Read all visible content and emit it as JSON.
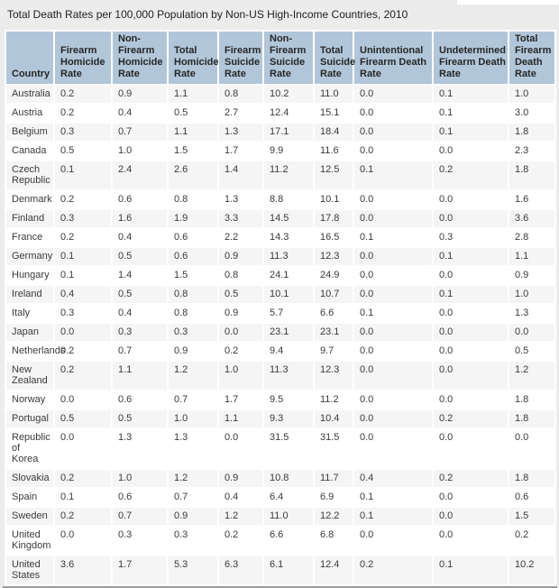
{
  "chart_data": {
    "type": "table",
    "title": "Total Death Rates per 100,000 Population by Non-US High-Income Countries, 2010",
    "columns": [
      "Country",
      "Firearm Homicide Rate",
      "Non-Firearm Homicide Rate",
      "Total Homicide Rate",
      "Firearm Suicide Rate",
      "Non-Firearm Suicide Rate",
      "Total Suicide Rate",
      "Unintentional Firearm Death Rate",
      "Undetermined Firearm Death Rate",
      "Total Firearm Death Rate"
    ],
    "rows": [
      [
        "Australia",
        "0.2",
        "0.9",
        "1.1",
        "0.8",
        "10.2",
        "11.0",
        "0.0",
        "0.1",
        "1.0"
      ],
      [
        "Austria",
        "0.2",
        "0.4",
        "0.5",
        "2.7",
        "12.4",
        "15.1",
        "0.0",
        "0.1",
        "3.0"
      ],
      [
        "Belgium",
        "0.3",
        "0.7",
        "1.1",
        "1.3",
        "17.1",
        "18.4",
        "0.0",
        "0.1",
        "1.8"
      ],
      [
        "Canada",
        "0.5",
        "1.0",
        "1.5",
        "1.7",
        "9.9",
        "11.6",
        "0.0",
        "0.0",
        "2.3"
      ],
      [
        "Czech\nRepublic",
        "0.1",
        "2.4",
        "2.6",
        "1.4",
        "11.2",
        "12.5",
        "0.1",
        "0.2",
        "1.8"
      ],
      [
        "Denmark",
        "0.2",
        "0.6",
        "0.8",
        "1.3",
        "8.8",
        "10.1",
        "0.0",
        "0.0",
        "1.6"
      ],
      [
        "Finland",
        "0.3",
        "1.6",
        "1.9",
        "3.3",
        "14.5",
        "17.8",
        "0.0",
        "0.0",
        "3.6"
      ],
      [
        "France",
        "0.2",
        "0.4",
        "0.6",
        "2.2",
        "14.3",
        "16.5",
        "0.1",
        "0.3",
        "2.8"
      ],
      [
        "Germany",
        "0.1",
        "0.5",
        "0.6",
        "0.9",
        "11.3",
        "12.3",
        "0.0",
        "0.1",
        "1.1"
      ],
      [
        "Hungary",
        "0.1",
        "1.4",
        "1.5",
        "0.8",
        "24.1",
        "24.9",
        "0.0",
        "0.0",
        "0.9"
      ],
      [
        "Ireland",
        "0.4",
        "0.5",
        "0.8",
        "0.5",
        "10.1",
        "10.7",
        "0.0",
        "0.1",
        "1.0"
      ],
      [
        "Italy",
        "0.3",
        "0.4",
        "0.8",
        "0.9",
        "5.7",
        "6.6",
        "0.1",
        "0.0",
        "1.3"
      ],
      [
        "Japan",
        "0.0",
        "0.3",
        "0.3",
        "0.0",
        "23.1",
        "23.1",
        "0.0",
        "0.0",
        "0.0"
      ],
      [
        "Netherlands",
        "0.2",
        "0.7",
        "0.9",
        "0.2",
        "9.4",
        "9.7",
        "0.0",
        "0.0",
        "0.5"
      ],
      [
        "New\nZealand",
        "0.2",
        "1.1",
        "1.2",
        "1.0",
        "11.3",
        "12.3",
        "0.0",
        "0.0",
        "1.2"
      ],
      [
        "Norway",
        "0.0",
        "0.6",
        "0.7",
        "1.7",
        "9.5",
        "11.2",
        "0.0",
        "0.0",
        "1.8"
      ],
      [
        "Portugal",
        "0.5",
        "0.5",
        "1.0",
        "1.1",
        "9.3",
        "10.4",
        "0.0",
        "0.2",
        "1.8"
      ],
      [
        "Republic of\nKorea",
        "0.0",
        "1.3",
        "1.3",
        "0.0",
        "31.5",
        "31.5",
        "0.0",
        "0.0",
        "0.0"
      ],
      [
        "Slovakia",
        "0.2",
        "1.0",
        "1.2",
        "0.9",
        "10.8",
        "11.7",
        "0.4",
        "0.2",
        "1.8"
      ],
      [
        "Spain",
        "0.1",
        "0.6",
        "0.7",
        "0.4",
        "6.4",
        "6.9",
        "0.1",
        "0.0",
        "0.6"
      ],
      [
        "Sweden",
        "0.2",
        "0.7",
        "0.9",
        "1.2",
        "11.0",
        "12.2",
        "0.1",
        "0.0",
        "1.5"
      ],
      [
        "United\nKingdom",
        "0.0",
        "0.3",
        "0.3",
        "0.2",
        "6.6",
        "6.8",
        "0.0",
        "0.0",
        "0.2"
      ],
      [
        "United\nStates",
        "3.6",
        "1.7",
        "5.3",
        "6.3",
        "6.1",
        "12.4",
        "0.2",
        "0.1",
        "10.2"
      ]
    ]
  },
  "colors": {
    "page_bg": "#ececec",
    "header_bg": "#b1c6d9",
    "row_odd_bg": "#f5f5f5",
    "row_even_bg": "#ffffff",
    "body_text": "#3a3a3a",
    "header_text": "#262626",
    "bottom_border": "#9b9b9b"
  }
}
